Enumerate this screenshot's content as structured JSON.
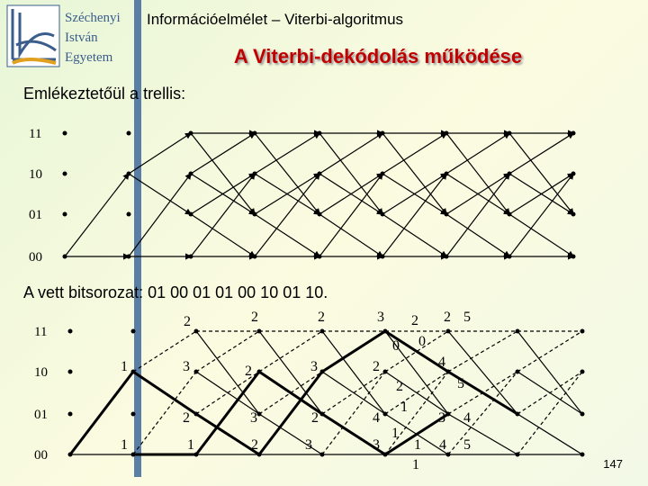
{
  "logo": {
    "lines": [
      "Széchenyi",
      "István",
      "Egyetem"
    ]
  },
  "header": {
    "course": "Információelmélet – Viterbi-algoritmus",
    "title": "A Viterbi-dekódolás működése"
  },
  "intro": "Emlékeztetőül a trellis:",
  "trellis1": {
    "states": [
      "11",
      "10",
      "01",
      "00"
    ]
  },
  "received": "A vett bitsorozat: 01 00 01 01 00 10 01 10.",
  "trellis2": {
    "states": [
      "11",
      "10",
      "01",
      "00"
    ],
    "metrics": [
      2,
      2,
      2,
      3,
      2,
      2,
      5,
      0,
      0,
      1,
      3,
      2,
      3,
      2,
      4,
      5,
      2,
      1,
      2,
      3,
      2,
      4,
      3,
      4,
      1,
      1,
      1,
      2,
      3,
      3,
      1,
      4,
      5,
      1
    ]
  },
  "page_number": "147"
}
